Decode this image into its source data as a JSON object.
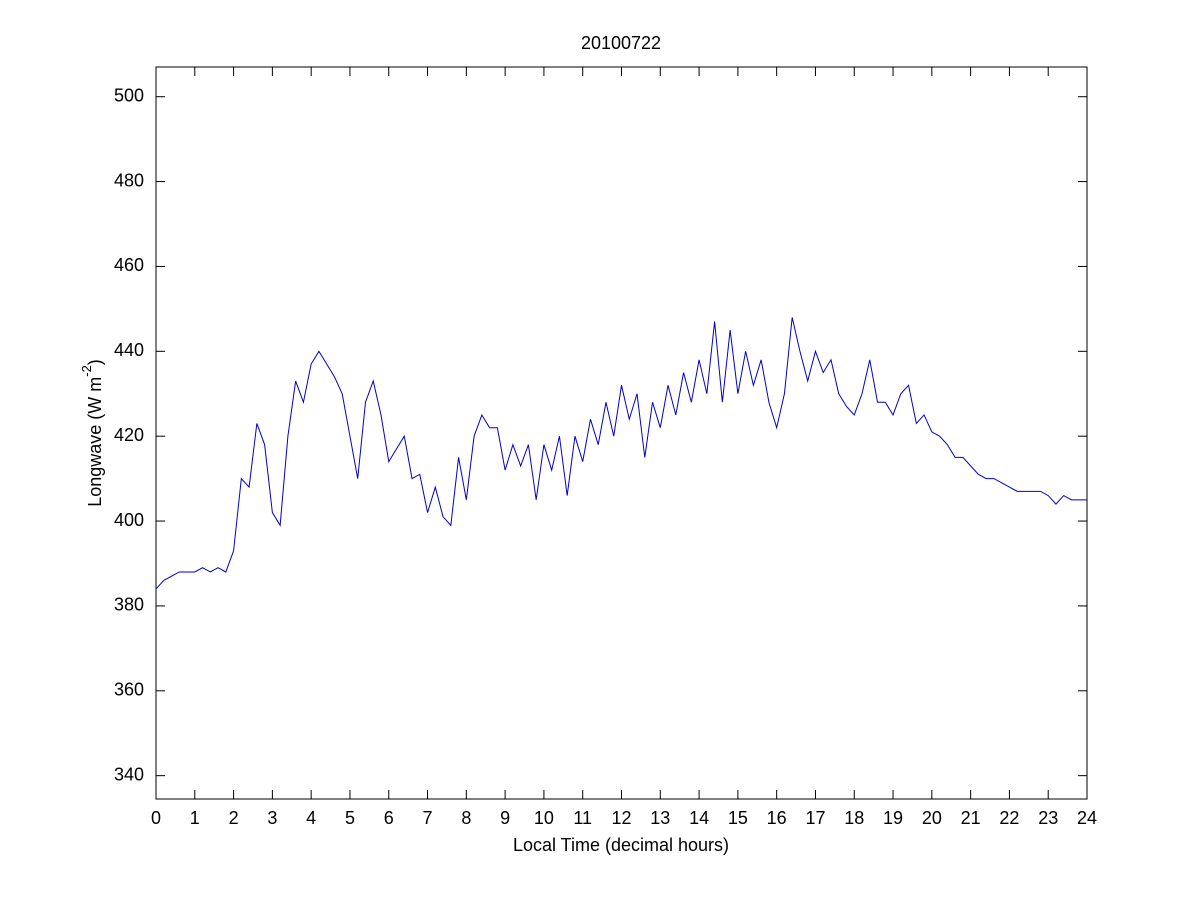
{
  "chart_data": {
    "type": "line",
    "title": "20100722",
    "xlabel": "Local Time (decimal hours)",
    "ylabel": [
      "Longwave (W m",
      "-2",
      ")"
    ],
    "xlim": [
      0,
      24
    ],
    "xticks": [
      0,
      1,
      2,
      3,
      4,
      5,
      6,
      7,
      8,
      9,
      10,
      11,
      12,
      13,
      14,
      15,
      16,
      17,
      18,
      19,
      20,
      21,
      22,
      23,
      24
    ],
    "ylim": [
      334.5,
      507
    ],
    "yticks": [
      340,
      360,
      380,
      400,
      420,
      440,
      460,
      480,
      500
    ],
    "grid": false,
    "x": [
      0,
      0.2,
      0.4,
      0.6,
      0.8,
      1,
      1.2,
      1.4,
      1.6,
      1.8,
      2,
      2.2,
      2.4,
      2.6,
      2.8,
      3,
      3.2,
      3.4,
      3.6,
      3.8,
      4,
      4.2,
      4.4,
      4.6,
      4.8,
      5,
      5.2,
      5.4,
      5.6,
      5.8,
      6,
      6.2,
      6.4,
      6.6,
      6.8,
      7,
      7.2,
      7.4,
      7.6,
      7.8,
      8,
      8.2,
      8.4,
      8.6,
      8.8,
      9,
      9.2,
      9.4,
      9.6,
      9.8,
      10,
      10.2,
      10.4,
      10.6,
      10.8,
      11,
      11.2,
      11.4,
      11.6,
      11.8,
      12,
      12.2,
      12.4,
      12.6,
      12.8,
      13,
      13.2,
      13.4,
      13.6,
      13.8,
      14,
      14.2,
      14.4,
      14.6,
      14.8,
      15,
      15.2,
      15.4,
      15.6,
      15.8,
      16,
      16.2,
      16.4,
      16.6,
      16.8,
      17,
      17.2,
      17.4,
      17.6,
      17.8,
      18,
      18.2,
      18.4,
      18.6,
      18.8,
      19,
      19.2,
      19.4,
      19.6,
      19.8,
      20,
      20.2,
      20.4,
      20.6,
      20.8,
      21,
      21.2,
      21.4,
      21.6,
      21.8,
      22,
      22.2,
      22.4,
      22.6,
      22.8,
      23,
      23.2,
      23.4,
      23.6,
      23.8,
      24
    ],
    "series": [
      {
        "color": "#0000cc",
        "values": [
          384,
          386,
          387,
          388,
          388,
          388,
          389,
          388,
          389,
          388,
          393,
          410,
          408,
          423,
          418,
          402,
          399,
          420,
          433,
          428,
          437,
          440,
          437,
          434,
          430,
          420,
          410,
          428,
          433,
          425,
          414,
          417,
          420,
          410,
          411,
          402,
          408,
          401,
          399,
          415,
          405,
          420,
          425,
          422,
          422,
          412,
          418,
          413,
          418,
          405,
          418,
          412,
          420,
          406,
          420,
          414,
          424,
          418,
          428,
          420,
          432,
          424,
          430,
          415,
          428,
          422,
          432,
          425,
          435,
          428,
          438,
          430,
          447,
          428,
          445,
          430,
          440,
          432,
          438,
          428,
          422,
          430,
          448,
          440,
          433,
          440,
          435,
          438,
          430,
          427,
          425,
          430,
          438,
          428,
          428,
          425,
          430,
          432,
          423,
          425,
          421,
          420,
          418,
          415,
          415,
          413,
          411,
          410,
          410,
          409,
          408,
          407,
          407,
          407,
          407,
          406,
          404,
          406,
          405,
          405,
          405
        ]
      }
    ]
  }
}
